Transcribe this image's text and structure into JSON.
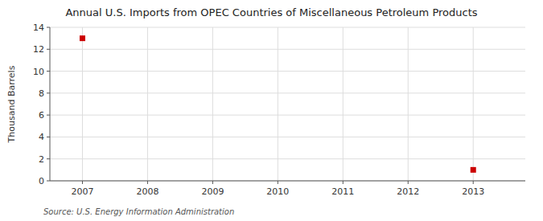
{
  "chart_data": {
    "type": "scatter",
    "title": "Annual U.S. Imports from OPEC Countries of Miscellaneous Petroleum Products",
    "ylabel": "Thousand Barrels",
    "source": "Source: U.S. Energy Information Administration",
    "x": [
      2007,
      2013
    ],
    "values": [
      13,
      1
    ],
    "color": "#cc0000",
    "marker": "square",
    "xlim": [
      2006.5,
      2013.8
    ],
    "ylim": [
      0,
      14
    ],
    "xticks": [
      2007,
      2008,
      2009,
      2010,
      2011,
      2012,
      2013
    ],
    "yticks": [
      0,
      2,
      4,
      6,
      8,
      10,
      12,
      14
    ],
    "grid": true
  }
}
